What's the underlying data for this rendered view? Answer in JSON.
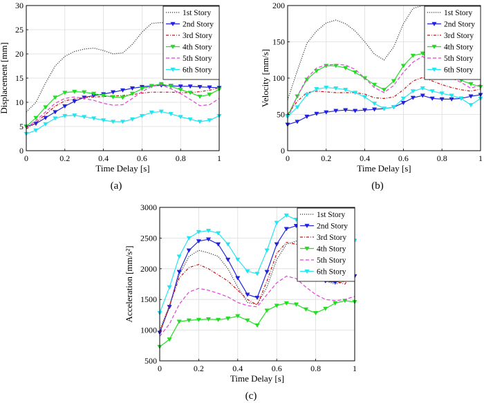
{
  "figure": {
    "panels": [
      {
        "id": "a",
        "label": "(a)"
      },
      {
        "id": "b",
        "label": "(b)"
      },
      {
        "id": "c",
        "label": "(c)"
      }
    ]
  },
  "chart_data": [
    {
      "id": "a",
      "type": "line",
      "xlabel": "Time Delay [s]",
      "ylabel": "Displacement [mm]",
      "xlim": [
        0,
        1
      ],
      "ylim": [
        0,
        30
      ],
      "xticks": [
        0,
        0.2,
        0.4,
        0.6,
        0.8,
        1
      ],
      "xtick_labels": [
        "0",
        "0.2",
        "0.4",
        "0.6",
        "0.8",
        "1"
      ],
      "yticks": [
        0,
        5,
        10,
        15,
        20,
        25,
        30
      ],
      "ytick_labels": [
        "0",
        "5",
        "10",
        "15",
        "20",
        "25",
        "30"
      ],
      "grid": true,
      "legend_position": "top-right",
      "x": [
        0,
        0.05,
        0.1,
        0.15,
        0.2,
        0.25,
        0.3,
        0.35,
        0.4,
        0.45,
        0.5,
        0.55,
        0.6,
        0.65,
        0.7,
        0.75,
        0.8,
        0.85,
        0.9,
        0.95,
        1.0
      ],
      "series": [
        {
          "name": "1st  Story",
          "color": "#333333",
          "style": "dotted",
          "marker": "none",
          "values": [
            8,
            10,
            14,
            17.5,
            19.5,
            20.5,
            21,
            21.2,
            20.7,
            20,
            20.2,
            22,
            24.5,
            26.3,
            26.5,
            26,
            25.6,
            25.3,
            25.3,
            25.6,
            25.6
          ]
        },
        {
          "name": "2nd Story",
          "color": "#2222dd",
          "style": "solid",
          "marker": "triangle-down",
          "values": [
            5,
            5.6,
            6.8,
            8,
            9.2,
            10.2,
            11,
            11.4,
            11.7,
            12.1,
            12.5,
            12.9,
            13.2,
            13.4,
            13.5,
            13.4,
            13.3,
            13.3,
            13.2,
            13.1,
            13
          ]
        },
        {
          "name": "3rd  Story",
          "color": "#cc1111",
          "style": "dashdot",
          "marker": "none",
          "values": [
            4.5,
            5.8,
            7.5,
            9.2,
            10.3,
            10.7,
            11,
            11.1,
            11.2,
            11.3,
            11.4,
            11.6,
            11.9,
            12.1,
            12.1,
            12.1,
            12,
            12,
            12.2,
            12.5,
            13
          ]
        },
        {
          "name": "4th  Story",
          "color": "#22dd22",
          "style": "solid",
          "marker": "triangle-down",
          "values": [
            5,
            6.8,
            9,
            11,
            12,
            12.2,
            12.1,
            11.8,
            11.4,
            11.1,
            11,
            11.8,
            12.8,
            13.4,
            13.8,
            13.3,
            12.6,
            12,
            11.2,
            11.6,
            12.7
          ]
        },
        {
          "name": "5th  Story",
          "color": "#e03fd6",
          "style": "dashed",
          "marker": "none",
          "values": [
            4.8,
            6.2,
            8,
            9.8,
            10.8,
            11.1,
            10.8,
            10.4,
            9.8,
            9.4,
            9.5,
            10.8,
            12.2,
            13.3,
            13.6,
            12.8,
            11.8,
            10.6,
            9.3,
            9.5,
            10.8
          ]
        },
        {
          "name": "6th  Story",
          "color": "#22e5f0",
          "style": "solid",
          "marker": "triangle-down",
          "values": [
            3.5,
            4.2,
            5.5,
            6.7,
            7.2,
            7.3,
            7,
            6.7,
            6.3,
            6,
            6,
            6.5,
            7.2,
            7.9,
            8.1,
            7.6,
            7,
            6.5,
            6,
            6.3,
            7.2
          ]
        }
      ]
    },
    {
      "id": "b",
      "type": "line",
      "xlabel": "Time Delay [s]",
      "ylabel": "Velocity [mm/s]",
      "xlim": [
        0,
        1
      ],
      "ylim": [
        0,
        200
      ],
      "xticks": [
        0,
        0.2,
        0.4,
        0.6,
        0.8,
        1
      ],
      "xtick_labels": [
        "0",
        "0.2",
        "0.4",
        "0.6",
        "0.8",
        "1"
      ],
      "yticks": [
        0,
        50,
        100,
        150,
        200
      ],
      "ytick_labels": [
        "0",
        "50",
        "100",
        "150",
        "200"
      ],
      "grid": true,
      "legend_position": "top-right",
      "x": [
        0,
        0.05,
        0.1,
        0.15,
        0.2,
        0.25,
        0.3,
        0.35,
        0.4,
        0.45,
        0.5,
        0.55,
        0.6,
        0.65,
        0.7,
        0.75,
        0.8,
        0.85,
        0.9,
        0.95,
        1.0
      ],
      "series": [
        {
          "name": "1st  Story",
          "color": "#333333",
          "style": "dotted",
          "marker": "none",
          "values": [
            70,
            110,
            148,
            165,
            176,
            180,
            175,
            165,
            150,
            133,
            125,
            143,
            175,
            196,
            200,
            198,
            190,
            180,
            172,
            168,
            168
          ]
        },
        {
          "name": "2nd Story",
          "color": "#2222dd",
          "style": "solid",
          "marker": "triangle-down",
          "values": [
            36,
            40,
            47,
            51,
            53,
            55,
            56,
            55,
            56,
            57,
            58,
            60,
            66,
            73,
            76,
            72,
            71,
            71,
            72,
            75,
            77
          ]
        },
        {
          "name": "3rd  Story",
          "color": "#cc1111",
          "style": "dashdot",
          "marker": "none",
          "values": [
            50,
            68,
            80,
            82,
            81,
            80,
            80,
            80,
            78,
            73,
            72,
            74,
            84,
            96,
            101,
            96,
            91,
            87,
            84,
            82,
            85
          ]
        },
        {
          "name": "4th  Story",
          "color": "#22dd22",
          "style": "solid",
          "marker": "triangle-down",
          "values": [
            48,
            75,
            98,
            110,
            117,
            117,
            114,
            108,
            100,
            91,
            84,
            96,
            117,
            131,
            134,
            121,
            110,
            103,
            97,
            92,
            88
          ]
        },
        {
          "name": "5th  Story",
          "color": "#e03fd6",
          "style": "dashed",
          "marker": "none",
          "values": [
            45,
            75,
            100,
            114,
            118,
            119,
            118,
            112,
            100,
            87,
            80,
            90,
            108,
            122,
            130,
            119,
            108,
            100,
            94,
            86,
            91
          ]
        },
        {
          "name": "6th  Story",
          "color": "#22e5f0",
          "style": "solid",
          "marker": "triangle-down",
          "values": [
            47,
            60,
            77,
            85,
            87,
            86,
            84,
            80,
            74,
            65,
            58,
            60,
            72,
            82,
            86,
            82,
            79,
            76,
            72,
            63,
            72
          ]
        }
      ]
    },
    {
      "id": "c",
      "type": "line",
      "xlabel": "Time Delay [s]",
      "ylabel": "Acceleration [mm/s²]",
      "xlim": [
        0,
        1
      ],
      "ylim": [
        500,
        3000
      ],
      "xticks": [
        0,
        0.2,
        0.4,
        0.6,
        0.8,
        1
      ],
      "xtick_labels": [
        "0",
        "0.2",
        "0.4",
        "0.6",
        "0.8",
        "1"
      ],
      "yticks": [
        500,
        1000,
        1500,
        2000,
        2500,
        3000
      ],
      "ytick_labels": [
        "500",
        "1000",
        "1500",
        "2000",
        "2500",
        "3000"
      ],
      "grid": true,
      "legend_position": "top-right",
      "x": [
        0,
        0.05,
        0.1,
        0.15,
        0.2,
        0.25,
        0.3,
        0.35,
        0.4,
        0.45,
        0.5,
        0.55,
        0.6,
        0.65,
        0.7,
        0.75,
        0.8,
        0.85,
        0.9,
        0.95,
        1.0
      ],
      "series": [
        {
          "name": "1st  Story",
          "color": "#333333",
          "style": "dotted",
          "marker": "none",
          "values": [
            1000,
            1400,
            1900,
            2200,
            2300,
            2260,
            2200,
            2000,
            1700,
            1450,
            1420,
            1700,
            2150,
            2400,
            2450,
            2300,
            2000,
            1800,
            1750,
            1800,
            1850
          ]
        },
        {
          "name": "2nd Story",
          "color": "#2222dd",
          "style": "solid",
          "marker": "triangle-down",
          "values": [
            960,
            1380,
            1950,
            2300,
            2450,
            2480,
            2400,
            2150,
            1850,
            1580,
            1530,
            1950,
            2400,
            2650,
            2700,
            2550,
            2150,
            1800,
            1780,
            1820,
            1880
          ]
        },
        {
          "name": "3rd  Story",
          "color": "#cc1111",
          "style": "dashdot",
          "marker": "none",
          "values": [
            950,
            1400,
            1850,
            2020,
            2070,
            2000,
            1900,
            1800,
            1650,
            1500,
            1410,
            1800,
            2250,
            2430,
            2400,
            2200,
            2000,
            1900,
            1800,
            1750,
            2000
          ]
        },
        {
          "name": "4th  Story",
          "color": "#22dd22",
          "style": "solid",
          "marker": "triangle-down",
          "values": [
            730,
            850,
            1140,
            1160,
            1170,
            1180,
            1170,
            1190,
            1230,
            1160,
            1080,
            1320,
            1400,
            1440,
            1420,
            1340,
            1280,
            1350,
            1440,
            1480,
            1460
          ]
        },
        {
          "name": "5th  Story",
          "color": "#e03fd6",
          "style": "dashed",
          "marker": "none",
          "values": [
            900,
            1100,
            1420,
            1620,
            1680,
            1650,
            1600,
            1540,
            1450,
            1400,
            1380,
            1580,
            1770,
            1880,
            1840,
            1700,
            1580,
            1500,
            1480,
            1500,
            1550
          ]
        },
        {
          "name": "6th  Story",
          "color": "#22e5f0",
          "style": "solid",
          "marker": "triangle-down",
          "values": [
            1280,
            1700,
            2200,
            2500,
            2600,
            2620,
            2580,
            2400,
            2150,
            1960,
            1920,
            2300,
            2750,
            2870,
            2800,
            2600,
            2300,
            2050,
            2100,
            2250,
            2460
          ]
        }
      ]
    }
  ]
}
